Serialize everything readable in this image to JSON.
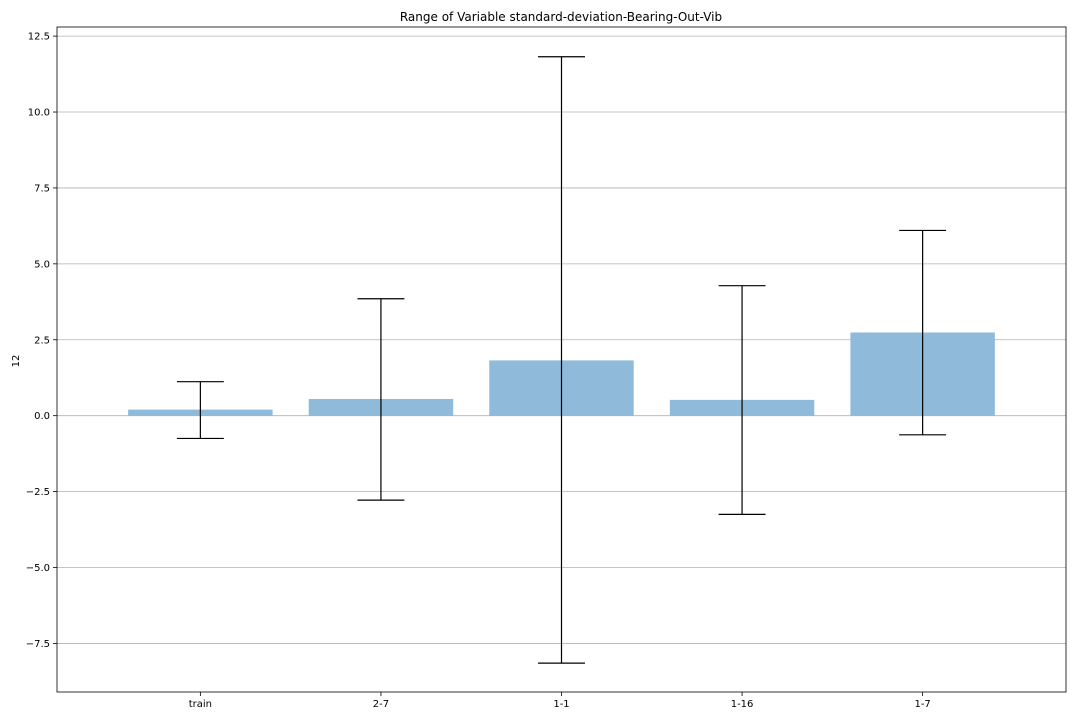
{
  "chart_data": {
    "type": "bar",
    "title": "Range of Variable standard-deviation-Bearing-Out-Vib",
    "xlabel": "",
    "ylabel": "12",
    "categories": [
      "train",
      "2-7",
      "1-1",
      "1-16",
      "1-7"
    ],
    "values": [
      0.2,
      0.55,
      1.82,
      0.52,
      2.74
    ],
    "error_low": [
      -0.75,
      -2.78,
      -8.15,
      -3.25,
      -0.63
    ],
    "error_high": [
      1.12,
      3.85,
      11.82,
      4.28,
      6.1
    ],
    "ylim": [
      -9.1,
      12.8
    ],
    "yticks": [
      -7.5,
      -5.0,
      -2.5,
      0.0,
      2.5,
      5.0,
      7.5,
      10.0,
      12.5
    ],
    "ytick_labels": [
      "−7.5",
      "−5.0",
      "−2.5",
      "0.0",
      "2.5",
      "5.0",
      "7.5",
      "10.0",
      "12.5"
    ],
    "grid": "y",
    "bar_color": "#8fbad9",
    "error_color": "#000000"
  }
}
